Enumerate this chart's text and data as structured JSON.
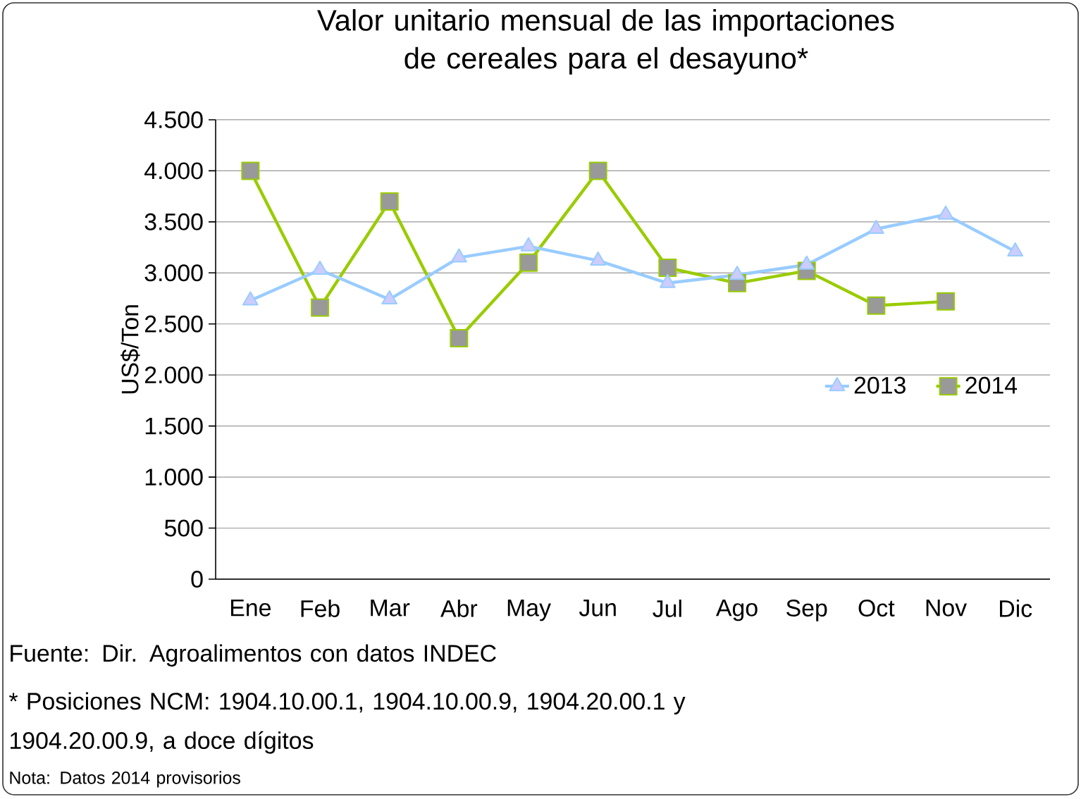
{
  "chart_data": {
    "type": "line",
    "title": "Valor unitario mensual de las importaciones de cereales para el desayuno*",
    "ylabel": "US$/Ton",
    "categories": [
      "Ene",
      "Feb",
      "Mar",
      "Abr",
      "May",
      "Jun",
      "Jul",
      "Ago",
      "Sep",
      "Oct",
      "Nov",
      "Dic"
    ],
    "series": [
      {
        "name": "2013",
        "color": "#99ccff",
        "marker": "triangle",
        "values": [
          2730,
          3030,
          2740,
          3150,
          3260,
          3120,
          2900,
          2980,
          3080,
          3430,
          3570,
          3210
        ]
      },
      {
        "name": "2014",
        "color": "#99cc00",
        "marker": "square",
        "values": [
          4000,
          2660,
          3700,
          2360,
          3100,
          4000,
          3050,
          2900,
          3020,
          2680,
          2720,
          null
        ]
      }
    ],
    "ylim": [
      0,
      4500
    ],
    "yticks": [
      {
        "value": 0,
        "label": "0"
      },
      {
        "value": 500,
        "label": "500"
      },
      {
        "value": 1000,
        "label": "1.000"
      },
      {
        "value": 1500,
        "label": "1.500"
      },
      {
        "value": 2000,
        "label": "2.000"
      },
      {
        "value": 2500,
        "label": "2.500"
      },
      {
        "value": 3000,
        "label": "3.000"
      },
      {
        "value": 3500,
        "label": "3.500"
      },
      {
        "value": 4000,
        "label": "4.000"
      },
      {
        "value": 4500,
        "label": "4.500"
      }
    ],
    "grid": "y",
    "legend": "right",
    "annotations": [
      "Fuente: Dir. Agroalimentos con datos INDEC",
      "* Posiciones NCM:  1904.10.00.1, 1904.10.00.9, 1904.20.00.1 y 1904.20.00.9, a doce dígitos",
      "Nota: Datos 2014 provisorios"
    ]
  }
}
